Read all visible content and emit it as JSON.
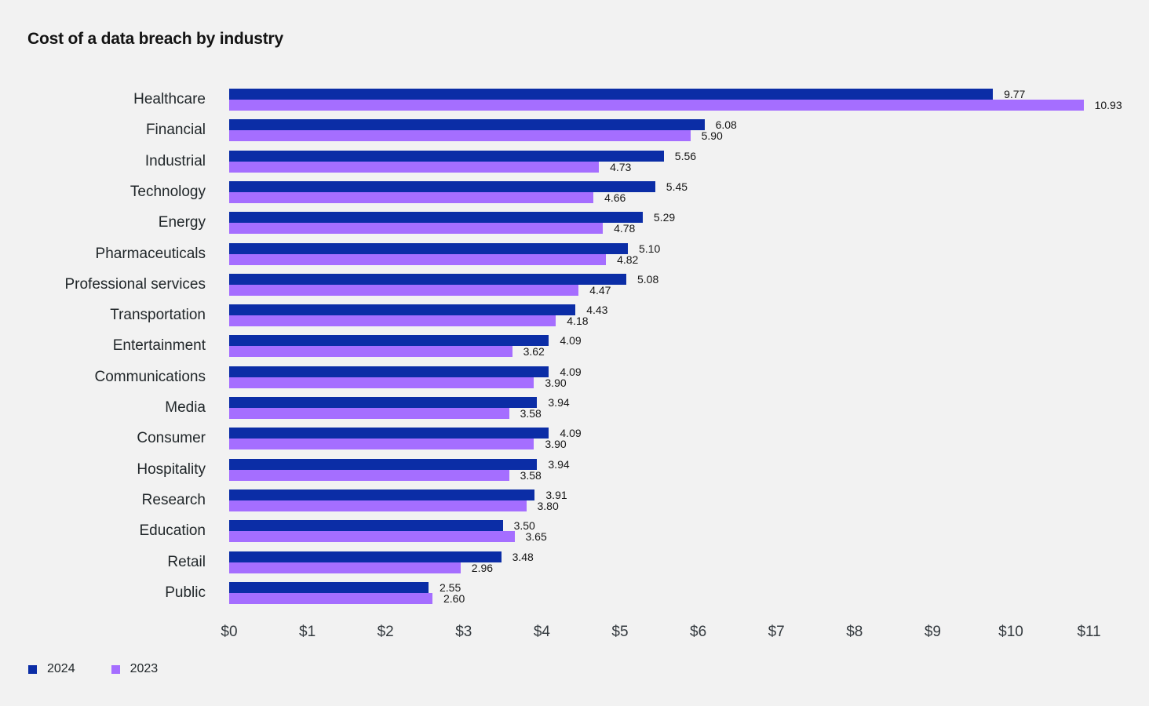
{
  "title": "Cost of a data breach by industry",
  "colors": {
    "background": "#f2f2f2",
    "series_2024": "#0b2da6",
    "series_2023": "#a56eff",
    "title_text": "#131313",
    "label_text": "#21272a",
    "value_text": "#161616",
    "tick_text": "#343a3f"
  },
  "legend": {
    "position": "bottom-left",
    "items": [
      {
        "label": "2024",
        "color": "#0b2da6"
      },
      {
        "label": "2023",
        "color": "#a56eff"
      }
    ]
  },
  "chart_data": {
    "type": "bar",
    "orientation": "horizontal",
    "title": "Cost of a data breach by industry",
    "xlabel": "",
    "ylabel": "",
    "xlim": [
      0,
      11
    ],
    "grid": false,
    "legend_position": "bottom-left",
    "x_ticks": [
      "$0",
      "$1",
      "$2",
      "$3",
      "$4",
      "$5",
      "$6",
      "$7",
      "$8",
      "$9",
      "$10",
      "$11"
    ],
    "categories": [
      "Healthcare",
      "Financial",
      "Industrial",
      "Technology",
      "Energy",
      "Pharmaceuticals",
      "Professional services",
      "Transportation",
      "Entertainment",
      "Communications",
      "Media",
      "Consumer",
      "Hospitality",
      "Research",
      "Education",
      "Retail",
      "Public"
    ],
    "series": [
      {
        "name": "2024",
        "color": "#0b2da6",
        "values": [
          9.77,
          6.08,
          5.56,
          5.45,
          5.29,
          5.1,
          5.08,
          4.43,
          4.09,
          4.09,
          3.94,
          4.09,
          3.94,
          3.91,
          3.5,
          3.48,
          2.55
        ],
        "labels": [
          "9.77",
          "6.08",
          "5.56",
          "5.45",
          "5.29",
          "5.10",
          "5.08",
          "4.43",
          "4.09",
          "4.09",
          "3.94",
          "4.09",
          "3.94",
          "3.91",
          "3.50",
          "3.48",
          "2.55"
        ]
      },
      {
        "name": "2023",
        "color": "#a56eff",
        "values": [
          10.93,
          5.9,
          4.73,
          4.66,
          4.78,
          4.82,
          4.47,
          4.18,
          3.62,
          3.9,
          3.58,
          3.9,
          3.58,
          3.8,
          3.65,
          2.96,
          2.6
        ],
        "labels": [
          "10.93",
          "5.90",
          "4.73",
          "4.66",
          "4.78",
          "4.82",
          "4.47",
          "4.18",
          "3.62",
          "3.90",
          "3.58",
          "3.90",
          "3.58",
          "3.80",
          "3.65",
          "2.96",
          "2.60"
        ]
      }
    ]
  }
}
